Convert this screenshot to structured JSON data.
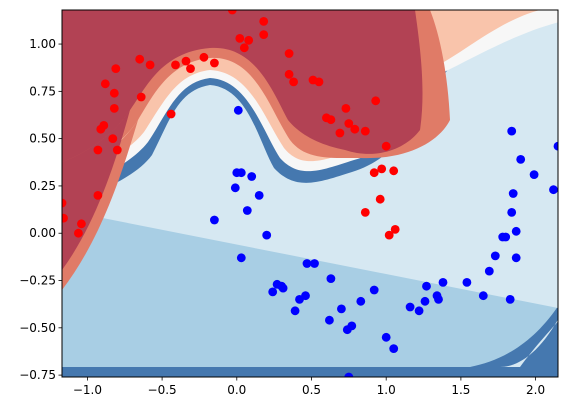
{
  "chart_data": {
    "type": "scatter",
    "title": "",
    "xlabel": "",
    "ylabel": "",
    "xlim": [
      -1.17,
      2.15
    ],
    "ylim": [
      -0.76,
      1.18
    ],
    "grid": false,
    "xticks": [
      -1.0,
      -0.5,
      0.0,
      0.5,
      1.0,
      1.5,
      2.0
    ],
    "xtick_labels": [
      "−1.0",
      "−0.5",
      "0.0",
      "0.5",
      "1.0",
      "1.5",
      "2.0"
    ],
    "yticks": [
      -0.75,
      -0.5,
      -0.25,
      0.0,
      0.25,
      0.5,
      0.75,
      1.0
    ],
    "ytick_labels": [
      "−0.75",
      "−0.50",
      "−0.25",
      "0.00",
      "0.25",
      "0.50",
      "0.75",
      "1.00"
    ],
    "background": {
      "kind": "decision-boundary-contour",
      "colormap": "RdBu",
      "levels": [
        "#b2182b",
        "#d6604d",
        "#f4a582",
        "#fddbc7",
        "#f7f7f7",
        "#d1e5f0",
        "#92c5de",
        "#4393c3",
        "#2166ac"
      ]
    },
    "series": [
      {
        "color": "#ff0000",
        "points": [
          [
            -1.17,
            0.16
          ],
          [
            -1.16,
            0.08
          ],
          [
            -1.06,
            0.0
          ],
          [
            -1.04,
            0.05
          ],
          [
            -0.93,
            0.2
          ],
          [
            -0.93,
            0.44
          ],
          [
            -0.91,
            0.55
          ],
          [
            -0.89,
            0.57
          ],
          [
            -0.88,
            0.79
          ],
          [
            -0.83,
            0.5
          ],
          [
            -0.82,
            0.66
          ],
          [
            -0.82,
            0.74
          ],
          [
            -0.81,
            0.87
          ],
          [
            -0.8,
            0.44
          ],
          [
            -0.65,
            0.92
          ],
          [
            -0.64,
            0.72
          ],
          [
            -0.58,
            0.89
          ],
          [
            -0.44,
            0.63
          ],
          [
            -0.41,
            0.89
          ],
          [
            -0.34,
            0.91
          ],
          [
            -0.31,
            0.87
          ],
          [
            -0.22,
            0.93
          ],
          [
            -0.15,
            0.9
          ],
          [
            -0.03,
            1.18
          ],
          [
            0.02,
            1.03
          ],
          [
            0.05,
            0.98
          ],
          [
            0.08,
            1.02
          ],
          [
            0.18,
            1.05
          ],
          [
            0.18,
            1.12
          ],
          [
            0.35,
            0.95
          ],
          [
            0.35,
            0.84
          ],
          [
            0.38,
            0.8
          ],
          [
            0.51,
            0.81
          ],
          [
            0.55,
            0.8
          ],
          [
            0.6,
            0.61
          ],
          [
            0.63,
            0.6
          ],
          [
            0.69,
            0.53
          ],
          [
            0.73,
            0.66
          ],
          [
            0.75,
            0.58
          ],
          [
            0.79,
            0.55
          ],
          [
            0.86,
            0.11
          ],
          [
            0.86,
            0.54
          ],
          [
            0.92,
            0.32
          ],
          [
            0.93,
            0.7
          ],
          [
            0.96,
            0.18
          ],
          [
            0.97,
            0.34
          ],
          [
            1.0,
            0.46
          ],
          [
            1.02,
            -0.01
          ],
          [
            1.05,
            0.33
          ],
          [
            1.06,
            0.02
          ]
        ]
      },
      {
        "color": "#0000ff",
        "points": [
          [
            -0.15,
            0.07
          ],
          [
            -0.01,
            0.24
          ],
          [
            0.0,
            0.32
          ],
          [
            0.01,
            0.65
          ],
          [
            0.03,
            0.32
          ],
          [
            0.03,
            -0.13
          ],
          [
            0.07,
            0.12
          ],
          [
            0.1,
            0.3
          ],
          [
            0.15,
            0.2
          ],
          [
            0.2,
            -0.01
          ],
          [
            0.24,
            -0.31
          ],
          [
            0.27,
            -0.27
          ],
          [
            0.3,
            -0.28
          ],
          [
            0.31,
            -0.29
          ],
          [
            0.39,
            -0.41
          ],
          [
            0.42,
            -0.35
          ],
          [
            0.46,
            -0.33
          ],
          [
            0.47,
            -0.16
          ],
          [
            0.52,
            -0.16
          ],
          [
            0.62,
            -0.46
          ],
          [
            0.63,
            -0.24
          ],
          [
            0.7,
            -0.4
          ],
          [
            0.74,
            -0.51
          ],
          [
            0.75,
            -0.76
          ],
          [
            0.77,
            -0.49
          ],
          [
            0.83,
            -0.36
          ],
          [
            0.92,
            -0.3
          ],
          [
            1.0,
            -0.55
          ],
          [
            1.05,
            -0.61
          ],
          [
            1.16,
            -0.39
          ],
          [
            1.22,
            -0.41
          ],
          [
            1.26,
            -0.36
          ],
          [
            1.27,
            -0.28
          ],
          [
            1.34,
            -0.33
          ],
          [
            1.35,
            -0.35
          ],
          [
            1.38,
            -0.26
          ],
          [
            1.54,
            -0.26
          ],
          [
            1.65,
            -0.33
          ],
          [
            1.69,
            -0.2
          ],
          [
            1.73,
            -0.12
          ],
          [
            1.78,
            -0.02
          ],
          [
            1.8,
            -0.02
          ],
          [
            1.83,
            -0.35
          ],
          [
            1.84,
            0.11
          ],
          [
            1.84,
            0.54
          ],
          [
            1.85,
            0.21
          ],
          [
            1.87,
            0.01
          ],
          [
            1.87,
            -0.13
          ],
          [
            1.9,
            0.39
          ],
          [
            1.99,
            0.31
          ],
          [
            2.12,
            0.23
          ],
          [
            2.15,
            0.46
          ]
        ]
      }
    ]
  }
}
